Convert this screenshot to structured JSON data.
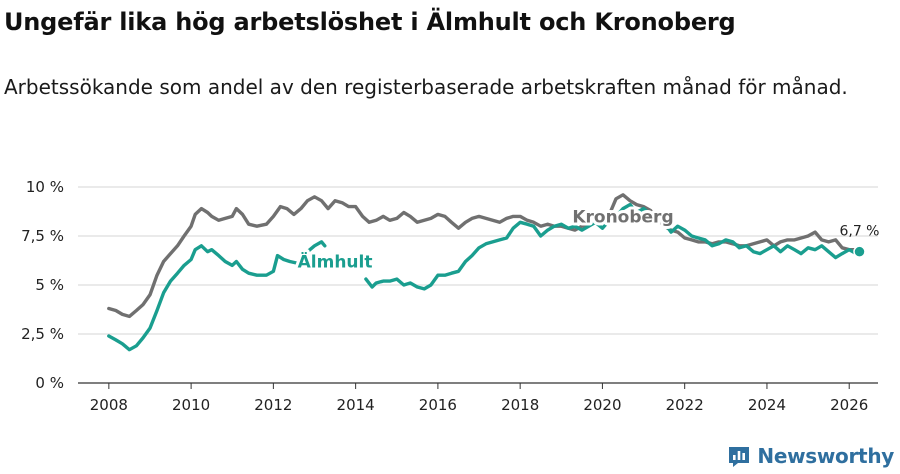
{
  "header": {
    "title": "Ungefär lika hög arbetslöshet i Älmhult och Kronoberg",
    "subtitle": "Arbetssökande som andel av den registerbaserade arbetskraften månad för månad."
  },
  "brand": {
    "name": "Newsworthy"
  },
  "chart_data": {
    "type": "line",
    "title": "Ungefär lika hög arbetslöshet i Älmhult och Kronoberg",
    "subtitle": "Arbetssökande som andel av den registerbaserade arbetskraften månad för månad.",
    "xlabel": "",
    "ylabel": "",
    "xlim": [
      2007.25,
      2026.7
    ],
    "ylim": [
      0,
      10
    ],
    "x_ticks": [
      2008,
      2010,
      2012,
      2014,
      2016,
      2018,
      2020,
      2022,
      2024,
      2026
    ],
    "x_tick_labels": [
      "2008",
      "2010",
      "2012",
      "2014",
      "2016",
      "2018",
      "2020",
      "2022",
      "2024",
      "2026"
    ],
    "y_ticks": [
      0,
      2.5,
      5,
      7.5,
      10
    ],
    "y_tick_labels": [
      "0 %",
      "2,5 %",
      "5 %",
      "7,5 %",
      "10 %"
    ],
    "grid": true,
    "end_label": "6,7 %",
    "series": [
      {
        "name": "Kronoberg",
        "color": "#707070",
        "points": [
          [
            2008.0,
            3.8
          ],
          [
            2008.17,
            3.7
          ],
          [
            2008.33,
            3.5
          ],
          [
            2008.5,
            3.4
          ],
          [
            2008.67,
            3.7
          ],
          [
            2008.83,
            4.0
          ],
          [
            2009.0,
            4.5
          ],
          [
            2009.17,
            5.5
          ],
          [
            2009.33,
            6.2
          ],
          [
            2009.5,
            6.6
          ],
          [
            2009.67,
            7.0
          ],
          [
            2009.83,
            7.5
          ],
          [
            2010.0,
            8.0
          ],
          [
            2010.1,
            8.6
          ],
          [
            2010.25,
            8.9
          ],
          [
            2010.4,
            8.7
          ],
          [
            2010.5,
            8.5
          ],
          [
            2010.67,
            8.3
          ],
          [
            2010.83,
            8.4
          ],
          [
            2011.0,
            8.5
          ],
          [
            2011.1,
            8.9
          ],
          [
            2011.25,
            8.6
          ],
          [
            2011.4,
            8.1
          ],
          [
            2011.6,
            8.0
          ],
          [
            2011.83,
            8.1
          ],
          [
            2012.0,
            8.5
          ],
          [
            2012.17,
            9.0
          ],
          [
            2012.33,
            8.9
          ],
          [
            2012.5,
            8.6
          ],
          [
            2012.67,
            8.9
          ],
          [
            2012.83,
            9.3
          ],
          [
            2013.0,
            9.5
          ],
          [
            2013.17,
            9.3
          ],
          [
            2013.33,
            8.9
          ],
          [
            2013.5,
            9.3
          ],
          [
            2013.67,
            9.2
          ],
          [
            2013.83,
            9.0
          ],
          [
            2014.0,
            9.0
          ],
          [
            2014.17,
            8.5
          ],
          [
            2014.33,
            8.2
          ],
          [
            2014.5,
            8.3
          ],
          [
            2014.67,
            8.5
          ],
          [
            2014.83,
            8.3
          ],
          [
            2015.0,
            8.4
          ],
          [
            2015.17,
            8.7
          ],
          [
            2015.33,
            8.5
          ],
          [
            2015.5,
            8.2
          ],
          [
            2015.67,
            8.3
          ],
          [
            2015.83,
            8.4
          ],
          [
            2016.0,
            8.6
          ],
          [
            2016.17,
            8.5
          ],
          [
            2016.33,
            8.2
          ],
          [
            2016.5,
            7.9
          ],
          [
            2016.67,
            8.2
          ],
          [
            2016.83,
            8.4
          ],
          [
            2017.0,
            8.5
          ],
          [
            2017.17,
            8.4
          ],
          [
            2017.33,
            8.3
          ],
          [
            2017.5,
            8.2
          ],
          [
            2017.67,
            8.4
          ],
          [
            2017.83,
            8.5
          ],
          [
            2018.0,
            8.5
          ],
          [
            2018.17,
            8.3
          ],
          [
            2018.33,
            8.2
          ],
          [
            2018.5,
            8.0
          ],
          [
            2018.67,
            8.1
          ],
          [
            2018.83,
            8.0
          ],
          [
            2019.0,
            8.0
          ],
          [
            2019.17,
            7.9
          ],
          [
            2019.33,
            7.8
          ],
          [
            2019.5,
            8.0
          ],
          [
            2019.67,
            8.1
          ],
          [
            2019.83,
            8.2
          ],
          [
            2020.0,
            8.3
          ],
          [
            2020.17,
            8.6
          ],
          [
            2020.33,
            9.4
          ],
          [
            2020.5,
            9.6
          ],
          [
            2020.67,
            9.3
          ],
          [
            2020.83,
            9.1
          ],
          [
            2021.0,
            9.0
          ],
          [
            2021.17,
            8.8
          ],
          [
            2021.33,
            8.4
          ],
          [
            2021.5,
            8.0
          ],
          [
            2021.67,
            7.8
          ],
          [
            2021.83,
            7.7
          ],
          [
            2022.0,
            7.4
          ],
          [
            2022.17,
            7.3
          ],
          [
            2022.33,
            7.2
          ],
          [
            2022.5,
            7.2
          ],
          [
            2022.67,
            7.1
          ],
          [
            2022.83,
            7.2
          ],
          [
            2023.0,
            7.2
          ],
          [
            2023.17,
            7.1
          ],
          [
            2023.33,
            7.0
          ],
          [
            2023.5,
            7.0
          ],
          [
            2023.67,
            7.1
          ],
          [
            2023.83,
            7.2
          ],
          [
            2024.0,
            7.3
          ],
          [
            2024.17,
            7.0
          ],
          [
            2024.33,
            7.2
          ],
          [
            2024.5,
            7.3
          ],
          [
            2024.67,
            7.3
          ],
          [
            2024.83,
            7.4
          ],
          [
            2025.0,
            7.5
          ],
          [
            2025.17,
            7.7
          ],
          [
            2025.33,
            7.3
          ],
          [
            2025.5,
            7.2
          ],
          [
            2025.67,
            7.3
          ],
          [
            2025.83,
            6.9
          ],
          [
            2026.0,
            6.8
          ],
          [
            2026.17,
            6.8
          ],
          [
            2026.25,
            6.7
          ]
        ]
      },
      {
        "name": "Älmhult",
        "color": "#1a9e8f",
        "points": [
          [
            2008.0,
            2.4
          ],
          [
            2008.17,
            2.2
          ],
          [
            2008.33,
            2.0
          ],
          [
            2008.5,
            1.7
          ],
          [
            2008.67,
            1.9
          ],
          [
            2008.83,
            2.3
          ],
          [
            2009.0,
            2.8
          ],
          [
            2009.17,
            3.7
          ],
          [
            2009.33,
            4.6
          ],
          [
            2009.5,
            5.2
          ],
          [
            2009.67,
            5.6
          ],
          [
            2009.83,
            6.0
          ],
          [
            2010.0,
            6.3
          ],
          [
            2010.1,
            6.8
          ],
          [
            2010.25,
            7.0
          ],
          [
            2010.4,
            6.7
          ],
          [
            2010.5,
            6.8
          ],
          [
            2010.67,
            6.5
          ],
          [
            2010.83,
            6.2
          ],
          [
            2011.0,
            6.0
          ],
          [
            2011.1,
            6.2
          ],
          [
            2011.25,
            5.8
          ],
          [
            2011.4,
            5.6
          ],
          [
            2011.6,
            5.5
          ],
          [
            2011.83,
            5.5
          ],
          [
            2012.0,
            5.7
          ],
          [
            2012.1,
            6.5
          ],
          [
            2012.25,
            6.3
          ],
          [
            2012.4,
            6.2
          ],
          [
            2012.6,
            6.1
          ],
          [
            2012.83,
            6.7
          ],
          [
            2013.0,
            7.0
          ],
          [
            2013.17,
            7.2
          ],
          [
            2013.25,
            7.0
          ]
        ]
      },
      {
        "name": "Älmhult",
        "color": "#1a9e8f",
        "points": [
          [
            2014.25,
            5.3
          ],
          [
            2014.4,
            4.9
          ],
          [
            2014.5,
            5.1
          ],
          [
            2014.67,
            5.2
          ],
          [
            2014.83,
            5.2
          ],
          [
            2015.0,
            5.3
          ],
          [
            2015.17,
            5.0
          ],
          [
            2015.33,
            5.1
          ],
          [
            2015.5,
            4.9
          ],
          [
            2015.67,
            4.8
          ],
          [
            2015.83,
            5.0
          ],
          [
            2016.0,
            5.5
          ],
          [
            2016.17,
            5.5
          ],
          [
            2016.33,
            5.6
          ],
          [
            2016.5,
            5.7
          ],
          [
            2016.67,
            6.2
          ],
          [
            2016.83,
            6.5
          ],
          [
            2017.0,
            6.9
          ],
          [
            2017.17,
            7.1
          ],
          [
            2017.33,
            7.2
          ],
          [
            2017.5,
            7.3
          ],
          [
            2017.67,
            7.4
          ],
          [
            2017.83,
            7.9
          ],
          [
            2018.0,
            8.2
          ],
          [
            2018.17,
            8.1
          ],
          [
            2018.33,
            8.0
          ],
          [
            2018.5,
            7.5
          ],
          [
            2018.67,
            7.8
          ],
          [
            2018.83,
            8.0
          ],
          [
            2019.0,
            8.1
          ],
          [
            2019.17,
            7.9
          ],
          [
            2019.33,
            8.0
          ],
          [
            2019.5,
            7.8
          ],
          [
            2019.67,
            8.0
          ],
          [
            2019.83,
            8.2
          ],
          [
            2020.0,
            7.9
          ],
          [
            2020.17,
            8.3
          ],
          [
            2020.33,
            8.5
          ],
          [
            2020.5,
            8.9
          ],
          [
            2020.67,
            9.1
          ],
          [
            2020.83,
            8.7
          ],
          [
            2021.0,
            8.9
          ],
          [
            2021.17,
            8.6
          ],
          [
            2021.33,
            8.6
          ],
          [
            2021.5,
            8.2
          ],
          [
            2021.67,
            7.7
          ],
          [
            2021.83,
            8.0
          ],
          [
            2022.0,
            7.8
          ],
          [
            2022.17,
            7.5
          ],
          [
            2022.33,
            7.4
          ],
          [
            2022.5,
            7.3
          ],
          [
            2022.67,
            7.0
          ],
          [
            2022.83,
            7.1
          ],
          [
            2023.0,
            7.3
          ],
          [
            2023.17,
            7.2
          ],
          [
            2023.33,
            6.9
          ],
          [
            2023.5,
            7.0
          ],
          [
            2023.67,
            6.7
          ],
          [
            2023.83,
            6.6
          ],
          [
            2024.0,
            6.8
          ],
          [
            2024.17,
            7.0
          ],
          [
            2024.33,
            6.7
          ],
          [
            2024.5,
            7.0
          ],
          [
            2024.67,
            6.8
          ],
          [
            2024.83,
            6.6
          ],
          [
            2025.0,
            6.9
          ],
          [
            2025.17,
            6.8
          ],
          [
            2025.33,
            7.0
          ],
          [
            2025.5,
            6.7
          ],
          [
            2025.67,
            6.4
          ],
          [
            2025.83,
            6.6
          ],
          [
            2026.0,
            6.8
          ],
          [
            2026.17,
            6.6
          ],
          [
            2026.25,
            6.7
          ]
        ]
      }
    ],
    "annotations": [
      {
        "text": "Kronoberg",
        "series": "Kronoberg",
        "x": 2020.5,
        "y": 8.5
      },
      {
        "text": "Älmhult",
        "series": "Älmhult",
        "x": 2013.5,
        "y": 6.2
      }
    ]
  }
}
